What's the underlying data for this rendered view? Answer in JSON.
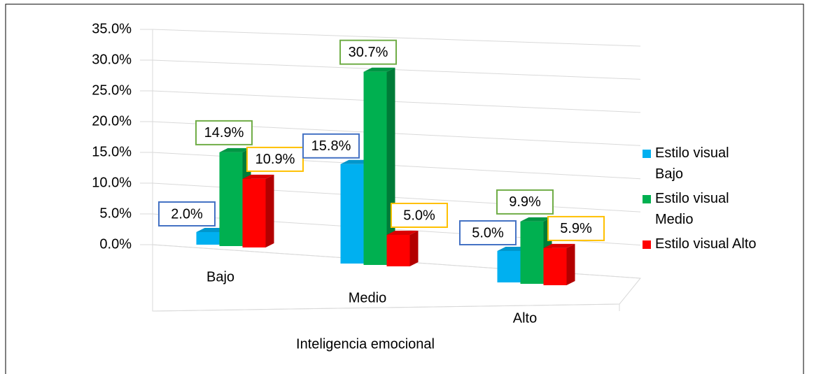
{
  "chart_data": {
    "type": "bar",
    "categories": [
      "Bajo",
      "Medio",
      "Alto"
    ],
    "x_label": "Inteligencia emocional",
    "series": [
      {
        "name": "Estilo visual Bajo",
        "color": "#00b0f0",
        "values": [
          2.0,
          15.8,
          5.0
        ],
        "value_labels": [
          "2.0%",
          "15.8%",
          "5.0%"
        ]
      },
      {
        "name": "Estilo visual Medio",
        "color": "#00b050",
        "values": [
          14.9,
          30.7,
          9.9
        ],
        "value_labels": [
          "14.9%",
          "30.7%",
          "9.9%"
        ]
      },
      {
        "name": "Estilo visual Alto",
        "color": "#ff0000",
        "values": [
          10.9,
          5.0,
          5.9
        ],
        "value_labels": [
          "10.9%",
          "5.0%",
          "5.9%"
        ]
      }
    ],
    "ylim": [
      0,
      35
    ],
    "yticks": [
      {
        "value": 0,
        "label": "0.0%"
      },
      {
        "value": 5,
        "label": "5.0%"
      },
      {
        "value": 10,
        "label": "10.0%"
      },
      {
        "value": 15,
        "label": "15.0%"
      },
      {
        "value": 20,
        "label": "20.0%"
      },
      {
        "value": 25,
        "label": "25.0%"
      },
      {
        "value": 30,
        "label": "30.0%"
      },
      {
        "value": 35,
        "label": "35.0%"
      }
    ],
    "grid": true,
    "legend": "right"
  }
}
